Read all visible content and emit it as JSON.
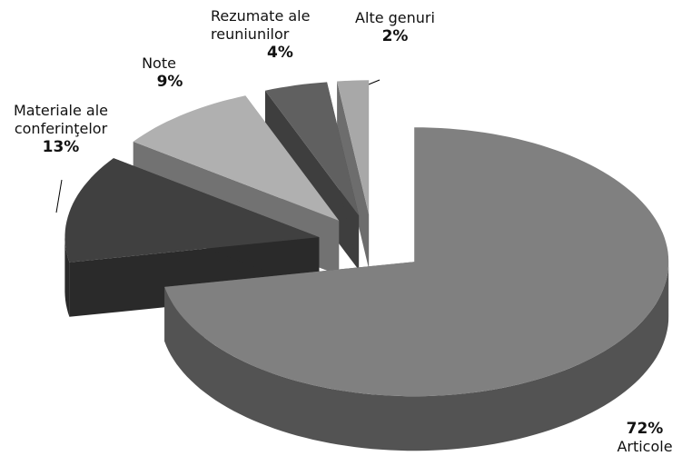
{
  "chart_data": {
    "type": "pie",
    "categories": [
      "Articole",
      "Materiale ale conferinţelor",
      "Note",
      "Rezumate ale reuniunilor",
      "Alte genuri"
    ],
    "values": [
      72,
      13,
      9,
      4,
      2
    ],
    "value_labels": [
      "72%",
      "13%",
      "9%",
      "4%",
      "2%"
    ],
    "colors": [
      "#808080",
      "#404040",
      "#b0b0b0",
      "#606060",
      "#a8a8a8"
    ]
  }
}
